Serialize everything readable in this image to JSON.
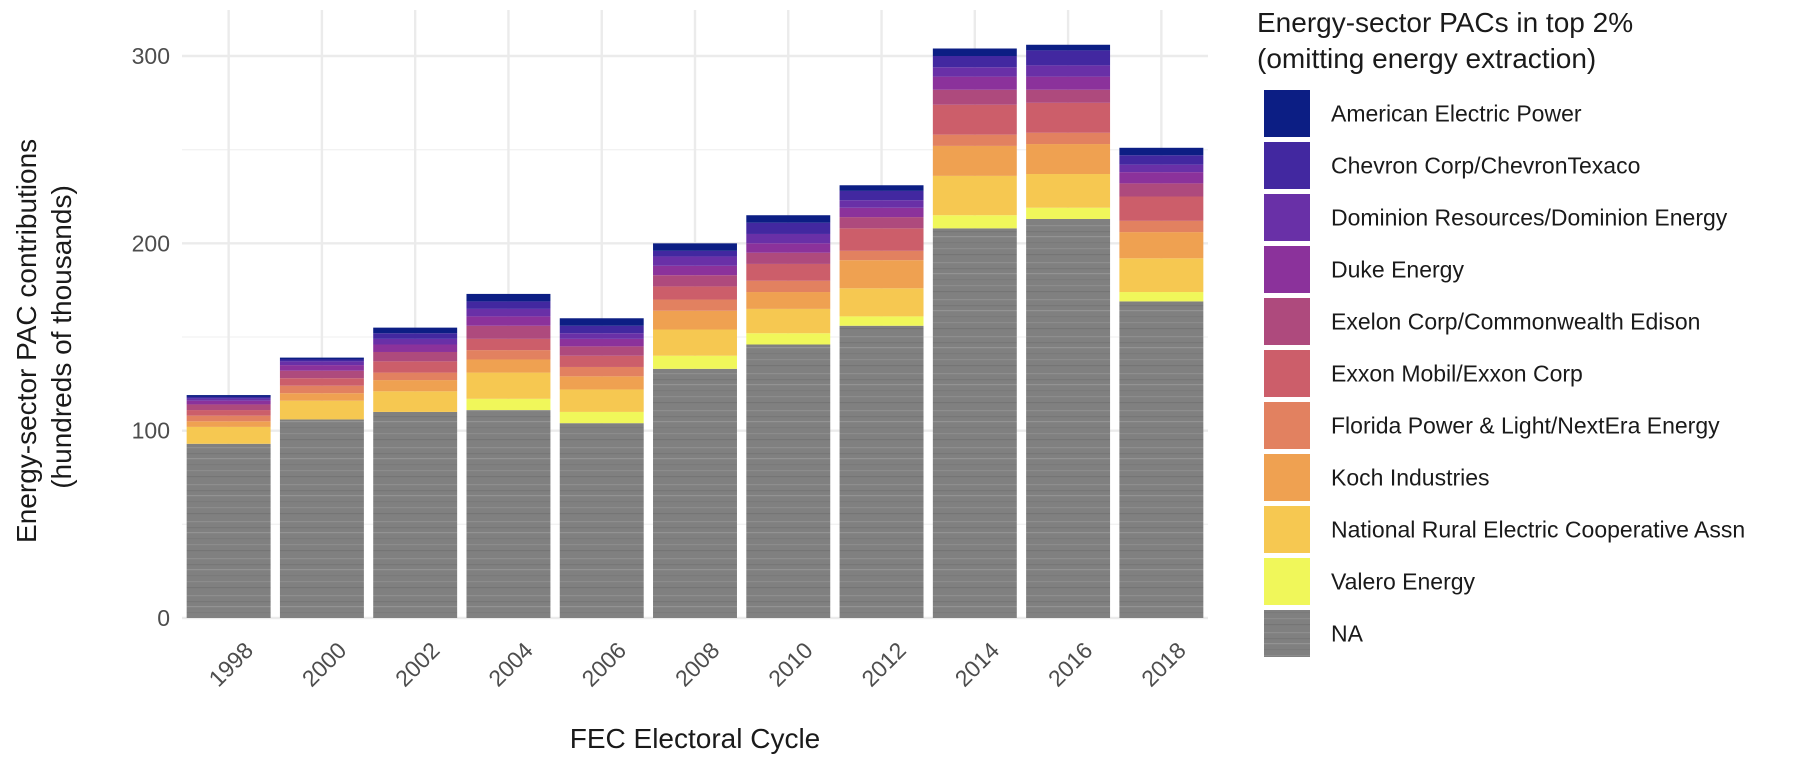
{
  "chart_data": {
    "type": "bar",
    "stacked": true,
    "xlabel": "FEC Electoral Cycle",
    "ylabel_lines": [
      "Energy-sector PAC contributions",
      "(hundreds of thousands)"
    ],
    "yticks": [
      0,
      100,
      200,
      300
    ],
    "ylim": [
      0,
      320
    ],
    "grid": true,
    "legend_position": "right",
    "legend_title_lines": [
      "Energy-sector PACs in top 2%",
      "(omitting energy extraction)"
    ],
    "categories": [
      "1998",
      "2000",
      "2002",
      "2004",
      "2006",
      "2008",
      "2010",
      "2012",
      "2014",
      "2016",
      "2018"
    ],
    "series": [
      {
        "name": "NA",
        "color": "#808080",
        "values": [
          93,
          106,
          110,
          111,
          104,
          133,
          146,
          156,
          208,
          213,
          169
        ]
      },
      {
        "name": "Valero Energy",
        "color": "#f0f75a",
        "values": [
          0,
          0,
          0,
          6,
          6,
          7,
          6,
          5,
          7,
          6,
          5
        ]
      },
      {
        "name": "National Rural Electric Cooperative Assn",
        "color": "#f6c851",
        "values": [
          9,
          10,
          11,
          14,
          12,
          14,
          13,
          15,
          21,
          18,
          18
        ]
      },
      {
        "name": "Koch Industries",
        "color": "#efa151",
        "values": [
          3,
          4,
          6,
          7,
          7,
          10,
          9,
          15,
          16,
          16,
          14
        ]
      },
      {
        "name": "Florida Power & Light/NextEra Energy",
        "color": "#e28160",
        "values": [
          3,
          4,
          4,
          5,
          5,
          6,
          6,
          5,
          6,
          6,
          6
        ]
      },
      {
        "name": "Exxon Mobil/Exxon Corp",
        "color": "#cc5e6a",
        "values": [
          3,
          4,
          6,
          6,
          6,
          7,
          9,
          12,
          16,
          16,
          13
        ]
      },
      {
        "name": "Exelon Corp/Commonwealth Edison",
        "color": "#ae4a7d",
        "values": [
          3,
          4,
          5,
          7,
          5,
          6,
          6,
          6,
          8,
          7,
          7
        ]
      },
      {
        "name": "Duke Energy",
        "color": "#8b329b",
        "values": [
          2,
          3,
          4,
          5,
          4,
          5,
          5,
          5,
          7,
          7,
          6
        ]
      },
      {
        "name": "Dominion Resources/Dominion Energy",
        "color": "#6930a7",
        "values": [
          1,
          2,
          3,
          4,
          3,
          5,
          5,
          4,
          5,
          6,
          4
        ]
      },
      {
        "name": "Chevron Corp/ChevronTexaco",
        "color": "#4228a0",
        "values": [
          1,
          1,
          3,
          4,
          4,
          3,
          6,
          5,
          6,
          8,
          5
        ]
      },
      {
        "name": "American Electric Power",
        "color": "#0c1e84",
        "values": [
          1,
          1,
          3,
          4,
          4,
          4,
          4,
          3,
          4,
          3,
          4
        ]
      }
    ],
    "legend_order": [
      "American Electric Power",
      "Chevron Corp/ChevronTexaco",
      "Dominion Resources/Dominion Energy",
      "Duke Energy",
      "Exelon Corp/Commonwealth Edison",
      "Exxon Mobil/Exxon Corp",
      "Florida Power & Light/NextEra Energy",
      "Koch Industries",
      "National Rural Electric Cooperative Assn",
      "Valero Energy",
      "NA"
    ]
  }
}
